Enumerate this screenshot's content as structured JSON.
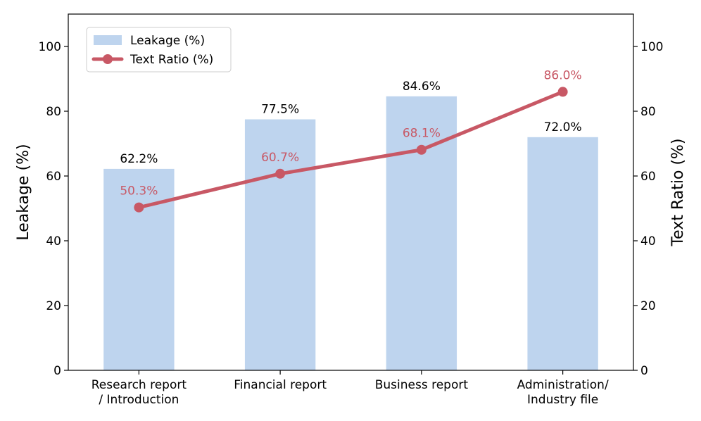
{
  "chart_data": {
    "type": "bar",
    "categories": [
      [
        "Research report",
        "/ Introduction"
      ],
      [
        "Financial report"
      ],
      [
        "Business report"
      ],
      [
        "Administration/",
        "Industry file"
      ]
    ],
    "series": [
      {
        "name": "Leakage (%)",
        "type": "bar",
        "axis": "left",
        "values": [
          62.2,
          77.5,
          84.6,
          72.0
        ],
        "value_labels": [
          "62.2%",
          "77.5%",
          "84.6%",
          "72.0%"
        ],
        "color": "#bed4ee"
      },
      {
        "name": "Text Ratio (%)",
        "type": "line",
        "axis": "right",
        "values": [
          50.3,
          60.7,
          68.1,
          86.0
        ],
        "value_labels": [
          "50.3%",
          "60.7%",
          "68.1%",
          "86.0%"
        ],
        "color": "#c85865"
      }
    ],
    "ylabel": "Leakage (%)",
    "y2label": "Text Ratio (%)",
    "ylim": [
      0,
      110
    ],
    "y2lim": [
      0,
      110
    ],
    "yticks": [
      0,
      20,
      40,
      60,
      80,
      100
    ],
    "y2ticks": [
      0,
      20,
      40,
      60,
      80,
      100
    ],
    "grid": false,
    "legend_position": "top-left"
  }
}
